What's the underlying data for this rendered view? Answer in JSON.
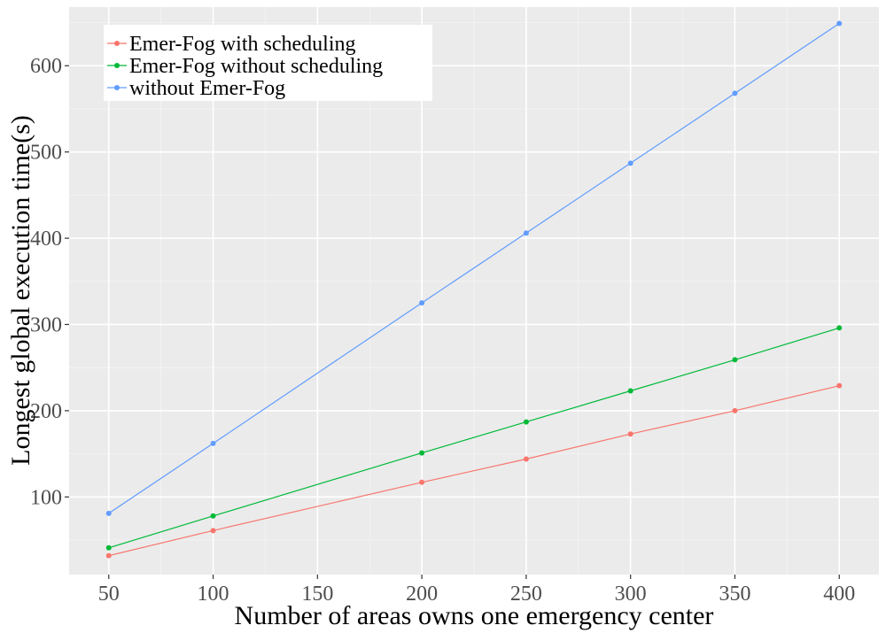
{
  "chart_data": {
    "type": "line",
    "title": "",
    "xlabel": "Number of areas owns one emergency center",
    "ylabel": "Longest global execution time(s)",
    "x": [
      50,
      100,
      200,
      250,
      300,
      350,
      400
    ],
    "xlim": [
      31,
      419
    ],
    "ylim": [
      10,
      668
    ],
    "x_ticks": [
      50,
      100,
      150,
      200,
      250,
      300,
      350,
      400
    ],
    "y_ticks": [
      100,
      200,
      300,
      400,
      500,
      600
    ],
    "grid": true,
    "legend_position": "top-left",
    "series": [
      {
        "name": "Emer-Fog with scheduling",
        "color": "#F8766D",
        "values": [
          32,
          61,
          117,
          144,
          173,
          200,
          229
        ]
      },
      {
        "name": "Emer-Fog without scheduling",
        "color": "#00BA38",
        "values": [
          41,
          78,
          151,
          187,
          223,
          259,
          296
        ]
      },
      {
        "name": "without Emer-Fog",
        "color": "#619CFF",
        "values": [
          81,
          162,
          325,
          406,
          487,
          568,
          649
        ]
      }
    ]
  }
}
